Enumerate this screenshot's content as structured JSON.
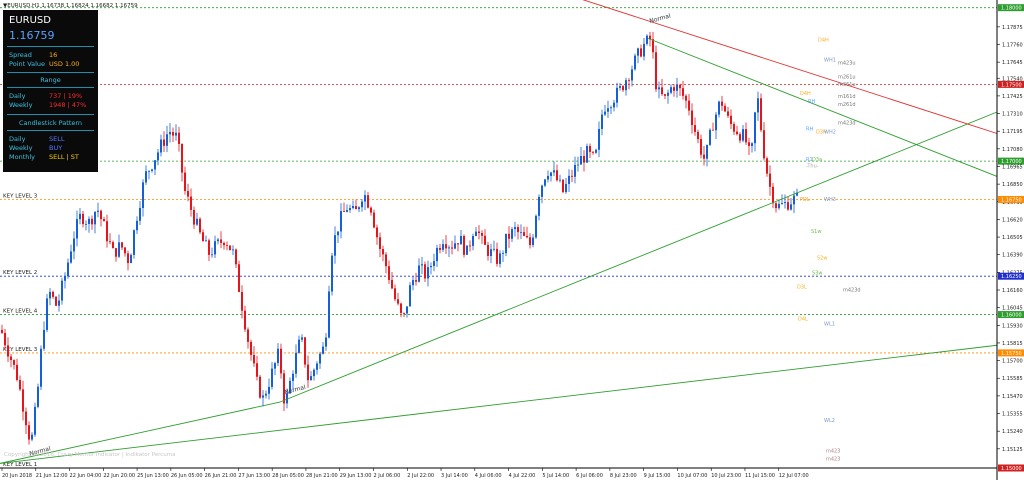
{
  "header": {
    "caption": "▼EURUSD,H1  1.16738 1.16824 1.16682 1.16759"
  },
  "info_panel": {
    "symbol": "EURUSD",
    "price": "1.16759",
    "spread_label": "Spread",
    "spread_value": "16",
    "point_label": "Point Value",
    "point_value": "USD 1.00",
    "range_title": "Range",
    "daily_label": "Daily",
    "daily_value": "737 | 19%",
    "weekly_label": "Weekly",
    "weekly_value": "1948 | 47%",
    "pattern_title": "Candlestick Pattern",
    "p_daily_label": "Daily",
    "p_daily_value": "SELL",
    "p_weekly_label": "Weekly",
    "p_weekly_value": "BUY",
    "p_monthly_label": "Monthly",
    "p_monthly_value": "SELL | ST",
    "colors": {
      "range_value": "#ff2a2a",
      "sell": "#5a78ff",
      "buy": "#5a78ff",
      "monthly": "#ffd000"
    }
  },
  "price_axis": {
    "ticks": [
      "1.17875",
      "1.17760",
      "1.17645",
      "1.17540",
      "1.17425",
      "1.17310",
      "1.17195",
      "1.17080",
      "1.16965",
      "1.16850",
      "1.16735",
      "1.16620",
      "1.16505",
      "1.16390",
      "1.16275",
      "1.16160",
      "1.16045",
      "1.15930",
      "1.15815",
      "1.15700",
      "1.15585",
      "1.15470",
      "1.15355",
      "1.15240",
      "1.15125"
    ],
    "tags": [
      {
        "text": "1.18000",
        "price": 1.18,
        "color": "#2e9e2e"
      },
      {
        "text": "1.17500",
        "price": 1.175,
        "color": "#d02020"
      },
      {
        "text": "1.17000",
        "price": 1.17,
        "color": "#2e9e2e"
      },
      {
        "text": "1.16750",
        "price": 1.1675,
        "color": "#ff8c00"
      },
      {
        "text": "1.16250",
        "price": 1.1625,
        "color": "#2030d0"
      },
      {
        "text": "1.16000",
        "price": 1.16,
        "color": "#2e9e2e"
      },
      {
        "text": "1.15750",
        "price": 1.1575,
        "color": "#ff8c00"
      },
      {
        "text": "1.15000",
        "price": 1.15,
        "color": "#d02020"
      }
    ]
  },
  "chart_data": {
    "type": "candlestick",
    "symbol": "EURUSD",
    "timeframe": "H1",
    "ylim": [
      1.15,
      1.1805
    ],
    "time_ticks": [
      "20 Jun 2018",
      "21 Jun 12:00",
      "22 Jun 04:00",
      "22 Jun 20:00",
      "25 Jun 13:00",
      "26 Jun 05:00",
      "26 Jun 21:00",
      "27 Jun 13:00",
      "28 Jun 05:00",
      "28 Jun 21:00",
      "29 Jun 13:00",
      "2 Jul 06:00",
      "2 Jul 22:00",
      "3 Jul 14:00",
      "4 Jul 06:00",
      "4 Jul 22:00",
      "5 Jul 14:00",
      "6 Jul 06:00",
      "8 Jul 23:00",
      "9 Jul 15:00",
      "10 Jul 07:00",
      "10 Jul 23:00",
      "11 Jul 15:00",
      "12 Jul 07:00"
    ],
    "close_path": [
      [
        0,
        1.159
      ],
      [
        8,
        1.1575
      ],
      [
        16,
        1.156
      ],
      [
        24,
        1.1535
      ],
      [
        30,
        1.1515
      ],
      [
        36,
        1.1545
      ],
      [
        42,
        1.159
      ],
      [
        48,
        1.1615
      ],
      [
        56,
        1.1605
      ],
      [
        64,
        1.1625
      ],
      [
        72,
        1.165
      ],
      [
        80,
        1.1665
      ],
      [
        88,
        1.166
      ],
      [
        96,
        1.167
      ],
      [
        104,
        1.1655
      ],
      [
        112,
        1.164
      ],
      [
        120,
        1.1645
      ],
      [
        128,
        1.1635
      ],
      [
        136,
        1.1665
      ],
      [
        144,
        1.169
      ],
      [
        152,
        1.17
      ],
      [
        160,
        1.171
      ],
      [
        168,
        1.172
      ],
      [
        176,
        1.1715
      ],
      [
        184,
        1.168
      ],
      [
        192,
        1.1665
      ],
      [
        200,
        1.165
      ],
      [
        208,
        1.164
      ],
      [
        216,
        1.1645
      ],
      [
        224,
        1.165
      ],
      [
        232,
        1.164
      ],
      [
        240,
        1.161
      ],
      [
        248,
        1.158
      ],
      [
        256,
        1.1555
      ],
      [
        262,
        1.1545
      ],
      [
        270,
        1.156
      ],
      [
        278,
        1.1575
      ],
      [
        284,
        1.154
      ],
      [
        292,
        1.1565
      ],
      [
        300,
        1.1585
      ],
      [
        308,
        1.1555
      ],
      [
        316,
        1.157
      ],
      [
        324,
        1.158
      ],
      [
        330,
        1.164
      ],
      [
        338,
        1.166
      ],
      [
        346,
        1.167
      ],
      [
        354,
        1.1665
      ],
      [
        362,
        1.168
      ],
      [
        370,
        1.167
      ],
      [
        378,
        1.1645
      ],
      [
        386,
        1.163
      ],
      [
        394,
        1.161
      ],
      [
        402,
        1.1595
      ],
      [
        410,
        1.162
      ],
      [
        418,
        1.163
      ],
      [
        426,
        1.1625
      ],
      [
        434,
        1.164
      ],
      [
        442,
        1.165
      ],
      [
        450,
        1.1645
      ],
      [
        458,
        1.165
      ],
      [
        466,
        1.164
      ],
      [
        474,
        1.166
      ],
      [
        482,
        1.1645
      ],
      [
        490,
        1.164
      ],
      [
        498,
        1.1635
      ],
      [
        506,
        1.165
      ],
      [
        514,
        1.1655
      ],
      [
        522,
        1.165
      ],
      [
        530,
        1.1645
      ],
      [
        538,
        1.168
      ],
      [
        546,
        1.1695
      ],
      [
        554,
        1.169
      ],
      [
        562,
        1.168
      ],
      [
        570,
        1.169
      ],
      [
        578,
        1.17
      ],
      [
        586,
        1.1705
      ],
      [
        594,
        1.17
      ],
      [
        602,
        1.1735
      ],
      [
        610,
        1.174
      ],
      [
        618,
        1.1745
      ],
      [
        626,
        1.1755
      ],
      [
        634,
        1.1765
      ],
      [
        642,
        1.1775
      ],
      [
        650,
        1.178
      ],
      [
        656,
        1.1745
      ],
      [
        664,
        1.174
      ],
      [
        672,
        1.175
      ],
      [
        680,
        1.1745
      ],
      [
        688,
        1.1735
      ],
      [
        696,
        1.1715
      ],
      [
        704,
        1.17
      ],
      [
        712,
        1.1725
      ],
      [
        720,
        1.174
      ],
      [
        728,
        1.1725
      ],
      [
        736,
        1.172
      ],
      [
        744,
        1.1715
      ],
      [
        750,
        1.17
      ],
      [
        756,
        1.1745
      ],
      [
        762,
        1.171
      ],
      [
        768,
        1.1685
      ],
      [
        776,
        1.167
      ],
      [
        784,
        1.1672
      ],
      [
        792,
        1.1675
      ],
      [
        798,
        1.1676
      ]
    ],
    "key_levels": [
      {
        "label": "KEY LEVEL 3",
        "price": 1.1675,
        "color": "#ff8c00"
      },
      {
        "label": "KEY LEVEL 2",
        "price": 1.1625,
        "color": "#2030d0"
      },
      {
        "label": "KEY LEVEL 4",
        "price": 1.16,
        "color": "#2e9e2e"
      },
      {
        "label": "KEY LEVEL 3",
        "price": 1.1575,
        "color": "#ff8c00"
      },
      {
        "label": "KEY LEVEL 1",
        "price": 1.15,
        "color": "#d02020"
      }
    ],
    "horizontal_lines": [
      {
        "price": 1.18,
        "color": "#2e9e2e"
      },
      {
        "price": 1.175,
        "color": "#d02020"
      },
      {
        "price": 1.17,
        "color": "#2e9e2e"
      }
    ],
    "trendlines": [
      {
        "from": [
          0,
          1.1503
        ],
        "to": [
          280,
          1.1543
        ],
        "color": "#2e9e2e"
      },
      {
        "from": [
          280,
          1.1543
        ],
        "to": [
          997,
          1.1732
        ],
        "color": "#2e9e2e"
      },
      {
        "from": [
          0,
          1.1503
        ],
        "to": [
          997,
          1.158
        ],
        "color": "#2e9e2e"
      },
      {
        "from": [
          560,
          1.181
        ],
        "to": [
          997,
          1.1718
        ],
        "color": "#e03030"
      },
      {
        "from": [
          648,
          1.178
        ],
        "to": [
          997,
          1.169
        ],
        "color": "#2e9e2e"
      }
    ],
    "annotations": [
      {
        "text": "Normal",
        "x": 650,
        "price": 1.179,
        "color": "#333333"
      },
      {
        "text": "Normal",
        "x": 285,
        "price": 1.1548,
        "color": "#333333"
      },
      {
        "text": "Normal",
        "x": 30,
        "price": 1.1508,
        "color": "#333333"
      }
    ],
    "pivot_labels": [
      {
        "text": "D4H",
        "x": 818,
        "price": 1.1778,
        "color": "#ffb020"
      },
      {
        "text": "WH1",
        "x": 824,
        "price": 1.1765,
        "color": "#7a9acc"
      },
      {
        "text": "m423u",
        "x": 838,
        "price": 1.1763,
        "color": "#777777"
      },
      {
        "text": "m261u",
        "x": 838,
        "price": 1.1754,
        "color": "#777777"
      },
      {
        "text": "m361u",
        "x": 838,
        "price": 1.1749,
        "color": "#777777"
      },
      {
        "text": "D4H",
        "x": 800,
        "price": 1.1743,
        "color": "#ffb020"
      },
      {
        "text": "RH",
        "x": 808,
        "price": 1.1738,
        "color": "#5aa0ff"
      },
      {
        "text": "m161d",
        "x": 838,
        "price": 1.1741,
        "color": "#777777"
      },
      {
        "text": "m261d",
        "x": 838,
        "price": 1.1736,
        "color": "#777777"
      },
      {
        "text": "m423d",
        "x": 838,
        "price": 1.1724,
        "color": "#777777"
      },
      {
        "text": "RH",
        "x": 806,
        "price": 1.172,
        "color": "#5aa0ff"
      },
      {
        "text": "D3H",
        "x": 816,
        "price": 1.1718,
        "color": "#ffb020"
      },
      {
        "text": "WH2",
        "x": 824,
        "price": 1.1718,
        "color": "#7a9acc"
      },
      {
        "text": "-Thu-",
        "x": 806,
        "price": 1.1696,
        "color": "#aaaaaa"
      },
      {
        "text": "R1",
        "x": 806,
        "price": 1.17,
        "color": "#5aa0ff"
      },
      {
        "text": "D3a",
        "x": 812,
        "price": 1.17,
        "color": "#6cc04a"
      },
      {
        "text": "WH3",
        "x": 824,
        "price": 1.1674,
        "color": "#7a9acc"
      },
      {
        "text": "PDL",
        "x": 800,
        "price": 1.1674,
        "color": "#ff9a20"
      },
      {
        "text": "S1w",
        "x": 811,
        "price": 1.1653,
        "color": "#6cc04a"
      },
      {
        "text": "S2w",
        "x": 817,
        "price": 1.1636,
        "color": "#ffb020"
      },
      {
        "text": "S3w",
        "x": 812,
        "price": 1.1626,
        "color": "#6cc04a"
      },
      {
        "text": "D3L",
        "x": 797,
        "price": 1.1617,
        "color": "#ffb020"
      },
      {
        "text": "m423d",
        "x": 843,
        "price": 1.1615,
        "color": "#777777"
      },
      {
        "text": "D4L",
        "x": 798,
        "price": 1.1596,
        "color": "#ffb020"
      },
      {
        "text": "WL1",
        "x": 824,
        "price": 1.1593,
        "color": "#7a9acc"
      },
      {
        "text": "WL2",
        "x": 824,
        "price": 1.153,
        "color": "#7a9acc"
      },
      {
        "text": "m423",
        "x": 826,
        "price": 1.151,
        "color": "#b08080"
      },
      {
        "text": "m423",
        "x": 826,
        "price": 1.1505,
        "color": "#b08080"
      }
    ],
    "watermark": "Copyright © 2018, Crazy Mentor Indicator | Indikator Percuma"
  }
}
